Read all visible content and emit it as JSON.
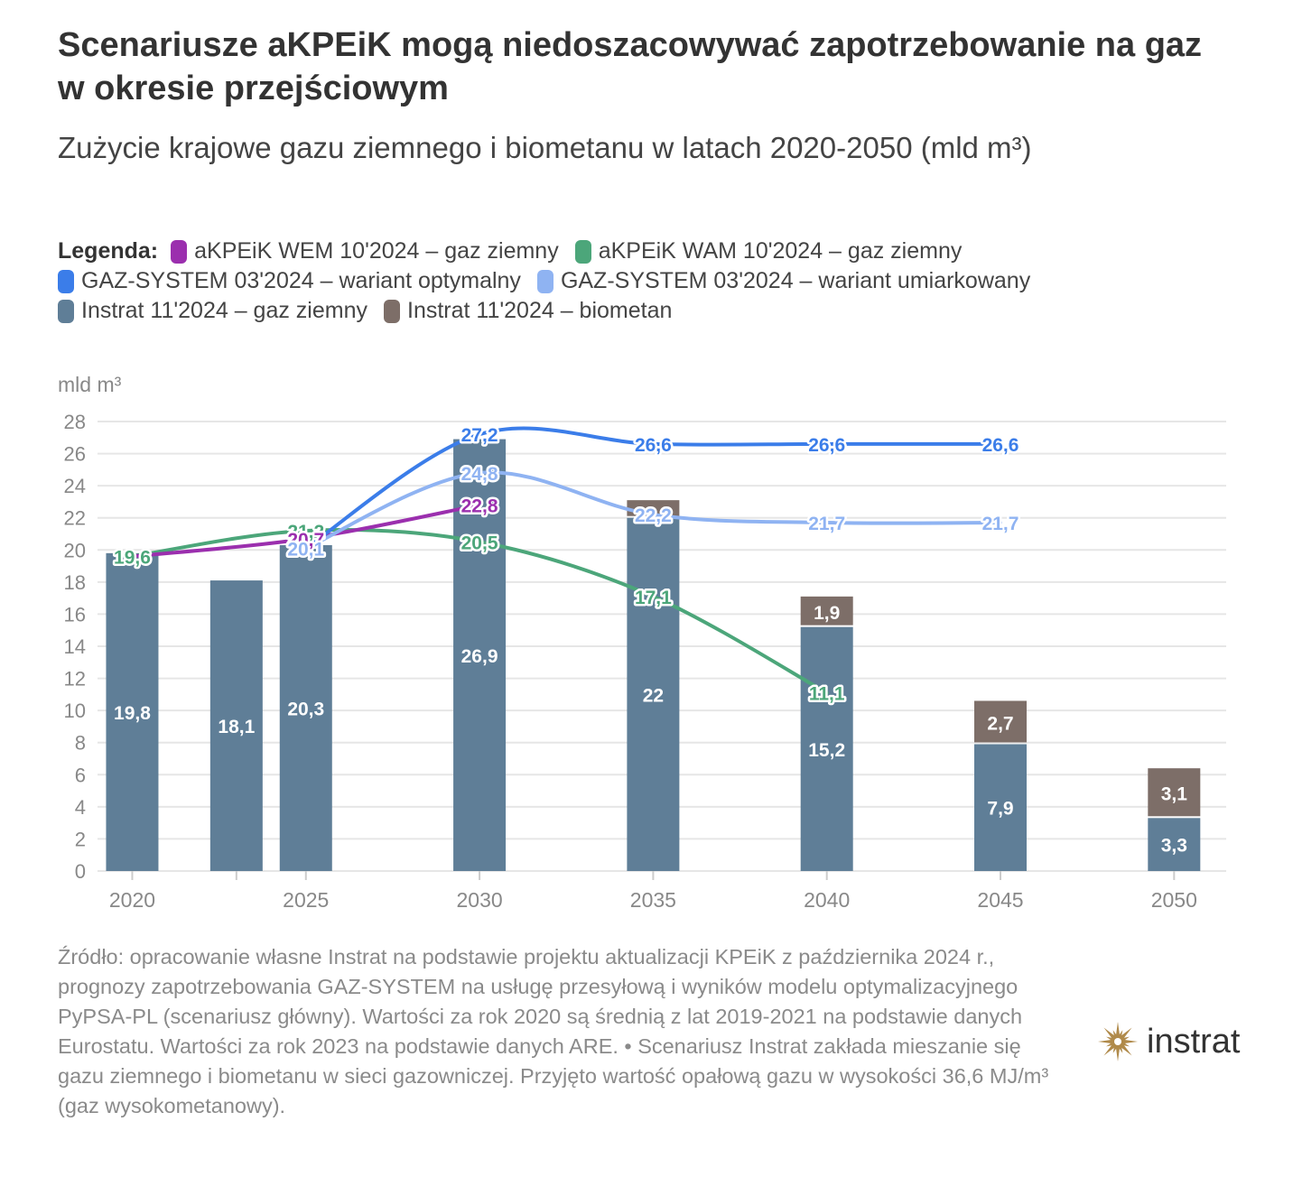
{
  "title": "Scenariusze aKPEiK mogą niedoszacowywać zapotrzebowanie na gaz w okresie przejściowym",
  "subtitle": "Zużycie krajowe gazu ziemnego i biometanu w latach 2020-2050 (mld m³)",
  "legend": {
    "title": "Legenda:",
    "items": [
      {
        "label": "aKPEiK WEM 10'2024 – gaz ziemny",
        "color": "#9b2fae"
      },
      {
        "label": "aKPEiK WAM 10'2024 – gaz ziemny",
        "color": "#4ca67a"
      },
      {
        "label": "GAZ-SYSTEM 03'2024 – wariant optymalny",
        "color": "#3b7de9"
      },
      {
        "label": "GAZ-SYSTEM 03'2024 – wariant umiarkowany",
        "color": "#8fb3f2"
      },
      {
        "label": "Instrat 11'2024 – gaz ziemny",
        "color": "#5f7e97"
      },
      {
        "label": "Instrat 11'2024 – biometan",
        "color": "#7d6e68"
      }
    ]
  },
  "chart_data": {
    "type": "bar",
    "ylabel": "mld m³",
    "ylim": [
      0,
      28
    ],
    "yticks": [
      0,
      2,
      4,
      6,
      8,
      10,
      12,
      14,
      16,
      18,
      20,
      22,
      24,
      26,
      28
    ],
    "xlim": [
      2019,
      2051.5
    ],
    "xticks": [
      2020,
      2025,
      2030,
      2035,
      2040,
      2045,
      2050
    ],
    "grid": true,
    "bars": [
      {
        "year": 2020,
        "gas": 19.8,
        "gas_label": "19,8",
        "bio": 0,
        "bio_label": ""
      },
      {
        "year": 2023,
        "gas": 18.1,
        "gas_label": "18,1",
        "bio": 0,
        "bio_label": ""
      },
      {
        "year": 2025,
        "gas": 20.3,
        "gas_label": "20,3",
        "bio": 0,
        "bio_label": ""
      },
      {
        "year": 2030,
        "gas": 26.9,
        "gas_label": "26,9",
        "bio": 0,
        "bio_label": ""
      },
      {
        "year": 2035,
        "gas": 22.0,
        "gas_label": "22",
        "bio": 1.1,
        "bio_label": ""
      },
      {
        "year": 2040,
        "gas": 15.2,
        "gas_label": "15,2",
        "bio": 1.9,
        "bio_label": "1,9"
      },
      {
        "year": 2045,
        "gas": 7.9,
        "gas_label": "7,9",
        "bio": 2.7,
        "bio_label": "2,7"
      },
      {
        "year": 2050,
        "gas": 3.3,
        "gas_label": "3,3",
        "bio": 3.1,
        "bio_label": "3,1"
      }
    ],
    "series": [
      {
        "name": "aKPEiK WAM 10'2024 – gaz ziemny",
        "color": "#4ca67a",
        "points": [
          {
            "x": 2020,
            "y": 19.6,
            "label": "19,6"
          },
          {
            "x": 2025,
            "y": 21.2,
            "label": "21,2"
          },
          {
            "x": 2030,
            "y": 20.5,
            "label": "20,5"
          },
          {
            "x": 2035,
            "y": 17.1,
            "label": "17,1"
          },
          {
            "x": 2040,
            "y": 11.1,
            "label": "11,1"
          }
        ]
      },
      {
        "name": "aKPEiK WEM 10'2024 – gaz ziemny",
        "color": "#9b2fae",
        "points": [
          {
            "x": 2020,
            "y": 19.6,
            "label": ""
          },
          {
            "x": 2025,
            "y": 20.7,
            "label": "20,7"
          },
          {
            "x": 2030,
            "y": 22.8,
            "label": "22,8"
          }
        ]
      },
      {
        "name": "GAZ-SYSTEM 03'2024 – wariant umiarkowany",
        "color": "#8fb3f2",
        "points": [
          {
            "x": 2025,
            "y": 20.1,
            "label": "20,1"
          },
          {
            "x": 2030,
            "y": 24.8,
            "label": "24,8"
          },
          {
            "x": 2035,
            "y": 22.2,
            "label": "22,2"
          },
          {
            "x": 2040,
            "y": 21.7,
            "label": "21,7"
          },
          {
            "x": 2045,
            "y": 21.7,
            "label": "21,7"
          }
        ]
      },
      {
        "name": "GAZ-SYSTEM 03'2024 – wariant optymalny",
        "color": "#3b7de9",
        "points": [
          {
            "x": 2025,
            "y": 20.1,
            "label": ""
          },
          {
            "x": 2030,
            "y": 27.2,
            "label": "27,2"
          },
          {
            "x": 2035,
            "y": 26.6,
            "label": "26,6"
          },
          {
            "x": 2040,
            "y": 26.6,
            "label": "26,6"
          },
          {
            "x": 2045,
            "y": 26.6,
            "label": "26,6"
          }
        ]
      }
    ],
    "colors": {
      "gas_bar": "#5f7e97",
      "bio_bar": "#7d6e68",
      "grid": "#e6e6e6",
      "axis_text": "#888888"
    }
  },
  "source": "Źródło: opracowanie własne Instrat na podstawie projektu aktualizacji KPEiK z października 2024 r., prognozy zapotrzebowania GAZ-SYSTEM na usługę przesyłową i wyników modelu optymalizacyjnego PyPSA-PL (scenariusz główny). Wartości za rok 2020 są średnią z lat 2019-2021 na podstawie danych Eurostatu. Wartości za rok 2023 na podstawie danych ARE. • Scenariusz Instrat zakłada mieszanie się gazu ziemnego i biometanu w sieci gazowniczej. Przyjęto wartość opałową gazu w wysokości 36,6 MJ/m³ (gaz wysokometanowy).",
  "logo": {
    "text": "instrat",
    "icon": "compass-star-icon",
    "color": "#b08a4a"
  }
}
